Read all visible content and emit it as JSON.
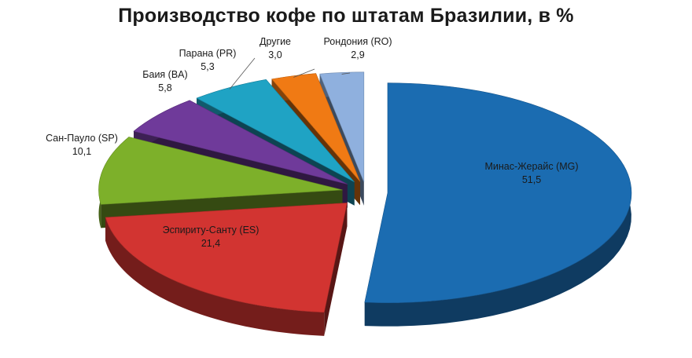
{
  "chart_data": {
    "type": "pie",
    "title": "Производство кофе по штатам Бразилии, в %",
    "slices": [
      {
        "label": "Минас-Жерайс (MG)",
        "value_text": "51,5",
        "value": 51.5,
        "color": "#1b6cb1"
      },
      {
        "label": "Эспириту-Санту (ES)",
        "value_text": "21,4",
        "value": 21.4,
        "color": "#d23431"
      },
      {
        "label": "Сан-Пауло (SP)",
        "value_text": "10,1",
        "value": 10.1,
        "color": "#7db02a"
      },
      {
        "label": "Баия (BA)",
        "value_text": "5,8",
        "value": 5.8,
        "color": "#6f3a9a"
      },
      {
        "label": "Парана (PR)",
        "value_text": "5,3",
        "value": 5.3,
        "color": "#1fa3c4"
      },
      {
        "label": "Другие",
        "value_text": "3,0",
        "value": 3.0,
        "color": "#f07a14"
      },
      {
        "label": "Рондония (RO)",
        "value_text": "2,9",
        "value": 2.9,
        "color": "#8fb0de"
      }
    ],
    "exploded": true,
    "three_d": true
  }
}
